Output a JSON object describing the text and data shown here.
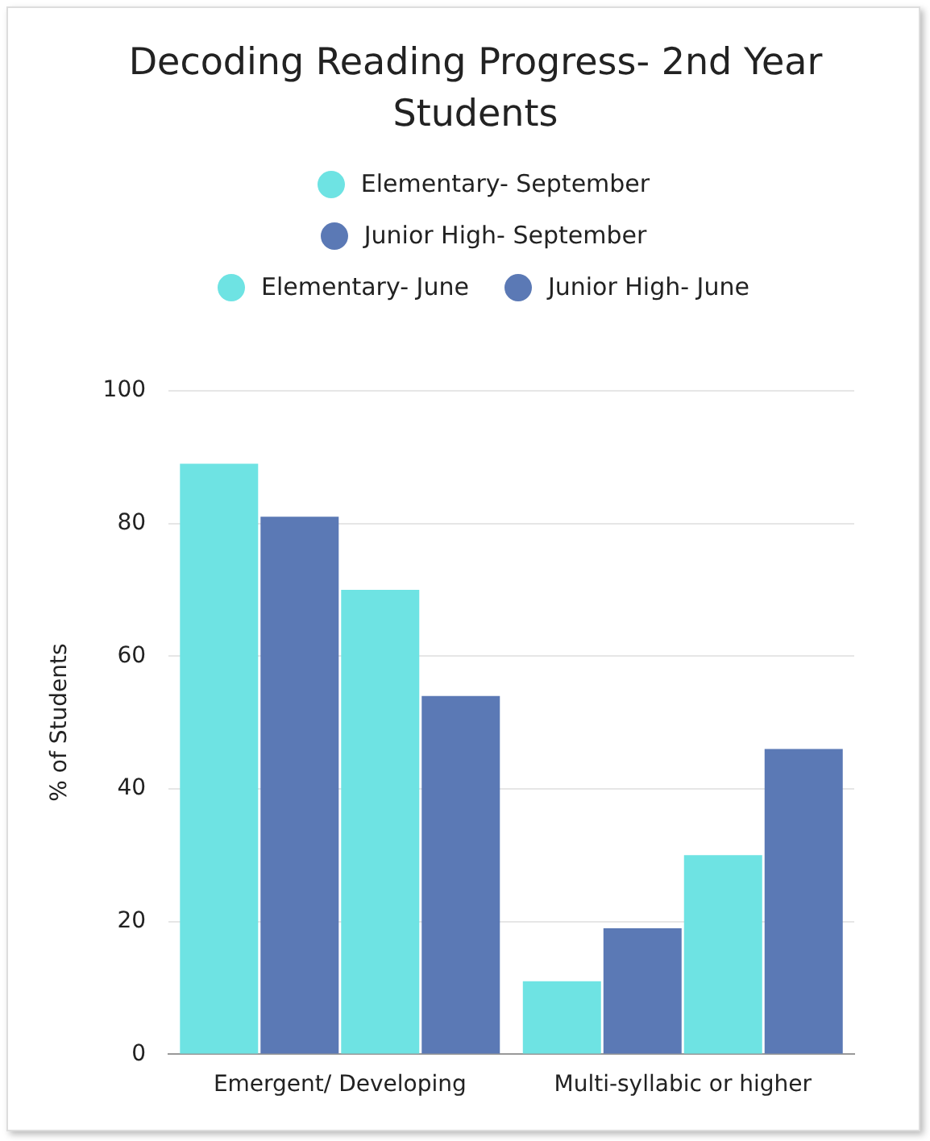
{
  "chart_data": {
    "type": "bar",
    "title": "Decoding Reading Progress- 2nd Year Students",
    "ylabel": "% of Students",
    "categories": [
      "Emergent/ Developing",
      "Multi-syllabic or higher"
    ],
    "series": [
      {
        "name": "Elementary- September",
        "color": "#6ee3e3",
        "values": [
          89,
          11
        ]
      },
      {
        "name": "Junior High- September",
        "color": "#5b79b5",
        "values": [
          81,
          19
        ]
      },
      {
        "name": "Elementary- June",
        "color": "#6ee3e3",
        "values": [
          70,
          30
        ]
      },
      {
        "name": "Junior High- June",
        "color": "#5b79b5",
        "values": [
          54,
          46
        ]
      }
    ],
    "ylim": [
      0,
      100
    ],
    "yticks": [
      0,
      20,
      40,
      60,
      80,
      100
    ],
    "grid": "y",
    "legend": "top",
    "marker": "circle"
  }
}
